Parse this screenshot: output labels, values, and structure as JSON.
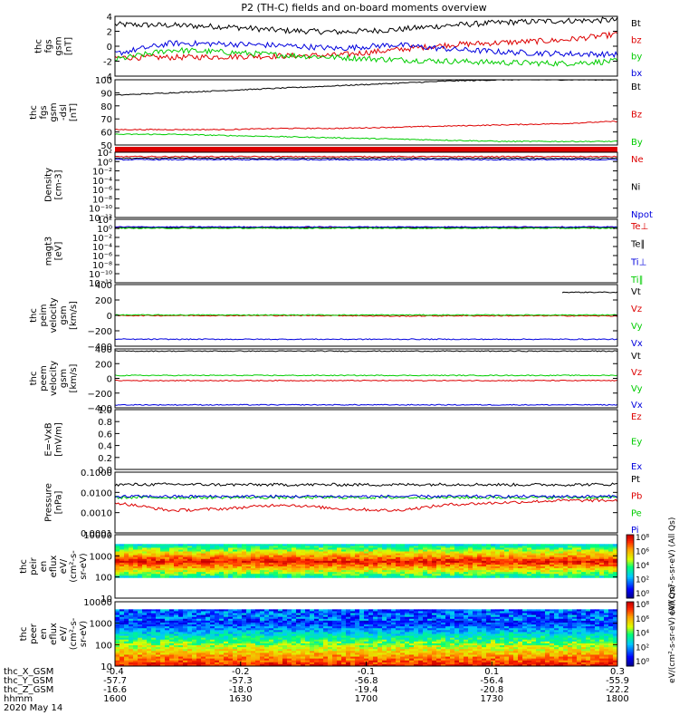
{
  "title": "P2 (TH-C) fields and on-board moments overview",
  "colors": {
    "black": "#000000",
    "red": "#dd0000",
    "green": "#00cc00",
    "blue": "#0000dd"
  },
  "chart_data": [
    {
      "type": "line",
      "id": "fgs",
      "ylabel": [
        "thc",
        "fgs",
        "gsm",
        "[nT]"
      ],
      "ylim": [
        -4,
        4
      ],
      "yticks": [
        "4",
        "2",
        "0",
        "-2",
        "-4"
      ],
      "series": [
        {
          "name": "Bt",
          "color": "black",
          "level": [
            2.9,
            2.8,
            2.6,
            2.1,
            1.9,
            2.2,
            2.8,
            3.2,
            3.4,
            3.5
          ]
        },
        {
          "name": "bz",
          "color": "red",
          "level": [
            -1.5,
            -1.5,
            -1.4,
            -1.3,
            -1.2,
            -0.5,
            0.2,
            0.5,
            0.8,
            1.6
          ]
        },
        {
          "name": "by",
          "color": "green",
          "level": [
            -1.8,
            -0.5,
            -0.8,
            -1.2,
            -1.5,
            -1.8,
            -2.0,
            -2.2,
            -2.3,
            -2.0
          ]
        },
        {
          "name": "bx",
          "color": "blue",
          "level": [
            -1.0,
            0.4,
            0.3,
            0.1,
            -0.3,
            0.2,
            -0.4,
            -0.8,
            -1.0,
            -1.1
          ]
        }
      ]
    },
    {
      "type": "line",
      "id": "fgs_dsl",
      "ylabel": [
        "thc",
        "fgs",
        "gsm",
        "-dsl",
        "[nT]"
      ],
      "ylim": [
        45,
        100
      ],
      "yticks": [
        "100",
        "90",
        "80",
        "70",
        "60",
        "50"
      ],
      "series": [
        {
          "name": "Bt",
          "color": "black",
          "level": [
            87,
            89,
            91,
            93,
            95,
            97,
            99,
            100,
            100,
            100
          ]
        },
        {
          "name": "Bz",
          "color": "red",
          "level": [
            58,
            58,
            58,
            59,
            59,
            60,
            61,
            62,
            63,
            65
          ]
        },
        {
          "name": "By",
          "color": "green",
          "level": [
            54,
            54,
            53,
            52,
            51,
            50,
            49,
            48,
            48,
            48
          ]
        }
      ]
    },
    {
      "type": "line",
      "id": "density",
      "ylabel": [
        "Density",
        "[cm-3]"
      ],
      "ylim": [
        -13,
        2
      ],
      "yticks": [
        "10²",
        "10⁰",
        "10⁻²",
        "10⁻⁴",
        "10⁻⁶",
        "10⁻⁸",
        "10⁻¹⁰",
        "10⁻¹²"
      ],
      "series": [
        {
          "name": "Ne",
          "color": "red",
          "level": [
            1,
            1,
            1,
            1,
            1,
            1,
            1,
            1,
            1,
            1
          ]
        },
        {
          "name": "Ni",
          "color": "black",
          "level": [
            0.6,
            0.6,
            0.6,
            0.6,
            0.6,
            0.6,
            0.6,
            0.6,
            0.6,
            0.6
          ]
        },
        {
          "name": "Npot",
          "color": "blue",
          "level": [
            0.3,
            0.3,
            0.3,
            0.3,
            0.3,
            0.3,
            0.3,
            0.3,
            0.3,
            0.3
          ]
        }
      ]
    },
    {
      "type": "line",
      "id": "temp",
      "ylabel": [
        "magt3",
        "[eV]"
      ],
      "ylim": [
        -13,
        2
      ],
      "yticks": [
        "10²",
        "10⁰",
        "10⁻²",
        "10⁻⁴",
        "10⁻⁶",
        "10⁻⁸",
        "10⁻¹⁰",
        "10⁻¹²"
      ],
      "series": [
        {
          "name": "Te⊥",
          "color": "red",
          "level": [
            0.1,
            0.1,
            0.1,
            0.1,
            0.1,
            0.1,
            0.1,
            0.1,
            0.1,
            0.1
          ]
        },
        {
          "name": "Te∥",
          "color": "black",
          "level": [
            0,
            0,
            0,
            0,
            0,
            0,
            0,
            0,
            0,
            0
          ]
        },
        {
          "name": "Ti⊥",
          "color": "blue",
          "level": [
            0.2,
            0.2,
            0.2,
            0.2,
            0.2,
            0.2,
            0.2,
            0.2,
            0.2,
            0.2
          ]
        },
        {
          "name": "Ti∥",
          "color": "green",
          "level": [
            -0.1,
            -0.1,
            -0.1,
            -0.1,
            -0.1,
            -0.1,
            -0.1,
            -0.1,
            -0.1,
            -0.1
          ]
        }
      ]
    },
    {
      "type": "line",
      "id": "peim",
      "ylabel": [
        "thc",
        "peim",
        "velocity",
        "gsm",
        "[km/s]"
      ],
      "ylim": [
        -400,
        400
      ],
      "yticks": [
        "400",
        "200",
        "0",
        "−200",
        "−400"
      ],
      "series": [
        {
          "name": "Vt",
          "color": "black",
          "level": [
            null,
            null,
            null,
            null,
            null,
            null,
            null,
            null,
            300,
            300
          ]
        },
        {
          "name": "Vz",
          "color": "red",
          "level": [
            -2,
            -2,
            -2,
            -2,
            -2,
            -10,
            -5,
            -5,
            -5,
            -8
          ]
        },
        {
          "name": "Vy",
          "color": "green",
          "level": [
            5,
            5,
            5,
            5,
            5,
            5,
            5,
            5,
            5,
            5
          ]
        },
        {
          "name": "Vx",
          "color": "blue",
          "level": [
            -310,
            -310,
            -310,
            -310,
            -310,
            -310,
            -310,
            -310,
            -310,
            -310
          ]
        }
      ]
    },
    {
      "type": "line",
      "id": "peem",
      "ylabel": [
        "thc",
        "peem",
        "velocity",
        "gsm",
        "[km/s]"
      ],
      "ylim": [
        -400,
        400
      ],
      "yticks": [
        "400",
        "200",
        "0",
        "−200",
        "−400"
      ],
      "series": [
        {
          "name": "Vt",
          "color": "black",
          "level": [
            370,
            370,
            370,
            370,
            370,
            370,
            370,
            370,
            370,
            370
          ]
        },
        {
          "name": "Vz",
          "color": "red",
          "level": [
            -30,
            -30,
            -30,
            -30,
            -30,
            -30,
            -30,
            -30,
            -30,
            -30
          ]
        },
        {
          "name": "Vy",
          "color": "green",
          "level": [
            40,
            40,
            40,
            40,
            40,
            40,
            40,
            40,
            40,
            40
          ]
        },
        {
          "name": "Vx",
          "color": "blue",
          "level": [
            -360,
            -360,
            -360,
            -360,
            -360,
            -360,
            -360,
            -360,
            -360,
            -360
          ]
        }
      ]
    },
    {
      "type": "line",
      "id": "efield",
      "ylabel": [
        "E=-VxB",
        "[mV/m]"
      ],
      "ylim": [
        0,
        1
      ],
      "yticks": [
        "1.0",
        "0.8",
        "0.6",
        "0.4",
        "0.2",
        "0.0"
      ],
      "series": [
        {
          "name": "Ez",
          "color": "red",
          "level": []
        },
        {
          "name": "Ey",
          "color": "green",
          "level": []
        },
        {
          "name": "Ex",
          "color": "blue",
          "level": []
        }
      ]
    },
    {
      "type": "line",
      "id": "pressure",
      "ylabel": [
        "Pressure",
        "[nPa]"
      ],
      "ylim": [
        -4,
        -1
      ],
      "yticks": [
        "0.1000",
        "0.0100",
        "0.0010",
        "0.0001"
      ],
      "series": [
        {
          "name": "Pt",
          "color": "black",
          "level": [
            -1.62,
            -1.6,
            -1.62,
            -1.62,
            -1.62,
            -1.62,
            -1.6,
            -1.62,
            -1.62,
            -1.6
          ]
        },
        {
          "name": "Pb",
          "color": "red",
          "level": [
            -2.5,
            -2.9,
            -2.8,
            -2.6,
            -2.8,
            -2.9,
            -2.6,
            -2.5,
            -2.4,
            -2.4
          ]
        },
        {
          "name": "Pe",
          "color": "green",
          "level": [
            -2.25,
            -2.25,
            -2.25,
            -2.25,
            -2.25,
            -2.25,
            -2.25,
            -2.25,
            -2.25,
            -2.25
          ]
        },
        {
          "name": "Pi",
          "color": "blue",
          "level": [
            -2.2,
            -2.2,
            -2.2,
            -2.2,
            -2.2,
            -2.2,
            -2.2,
            -2.2,
            -2.2,
            -2.2
          ]
        }
      ]
    },
    {
      "type": "heatmap",
      "id": "peir",
      "ylabel": [
        "thc",
        "peir",
        "en",
        "eflux",
        "eV/",
        "(cm²-s-",
        "sr-eV)"
      ],
      "ylim": [
        1,
        4.2
      ],
      "yticks": [
        "10000",
        "1000",
        "100",
        "10"
      ],
      "colorbar": {
        "label": "eV/(cm²-s-sr-eV) (All Qs)",
        "ticks": [
          "10⁸",
          "10⁶",
          "10⁴",
          "10²",
          "10⁰"
        ]
      }
    },
    {
      "type": "heatmap",
      "id": "peer",
      "ylabel": [
        "thc",
        "peer",
        "en",
        "eflux",
        "eV/",
        "(cm²-s-",
        "sr-eV)"
      ],
      "ylim": [
        0.8,
        4.2
      ],
      "yticks": [
        "10000",
        "1000",
        "100",
        "10"
      ],
      "colorbar": {
        "label": "eV/(cm²-s-sr-eV) (All Qs)",
        "ticks": [
          "10⁸",
          "10⁶",
          "10⁴",
          "10²",
          "10⁰"
        ]
      }
    }
  ],
  "xaxis": {
    "rows": [
      {
        "label": "thc_X_GSM",
        "ticks": [
          "-0.4",
          "-0.2",
          "-0.1",
          "0.1",
          "0.3"
        ]
      },
      {
        "label": "thc_Y_GSM",
        "ticks": [
          "-57.7",
          "-57.3",
          "-56.8",
          "-56.4",
          "-55.9"
        ]
      },
      {
        "label": "thc_Z_GSM",
        "ticks": [
          "-16.6",
          "-18.0",
          "-19.4",
          "-20.8",
          "-22.2"
        ]
      },
      {
        "label": "hhmm",
        "ticks": [
          "1600",
          "1630",
          "1700",
          "1730",
          "1800"
        ]
      }
    ],
    "date": "2020 May 14"
  }
}
